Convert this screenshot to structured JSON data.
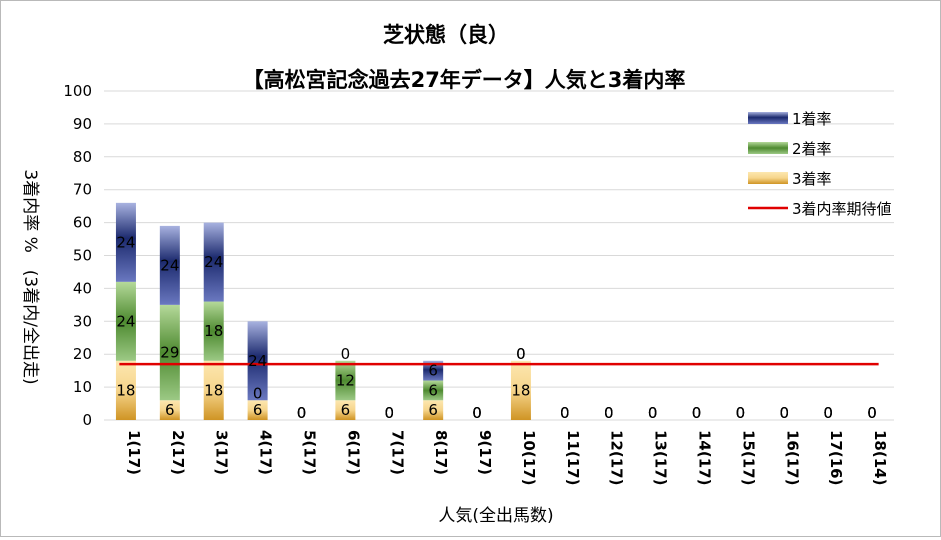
{
  "chart_data": {
    "type": "bar",
    "stacked": true,
    "title": "芝状態（良）",
    "subtitle": "【高松宮記念過去27年データ】人気と3着内率",
    "xlabel": "人気(全出馬数)",
    "ylabel": "3着内率 %　(3着内/全出走)",
    "ylim": [
      0,
      100
    ],
    "yticks": [
      "0",
      "10",
      "20",
      "30",
      "40",
      "50",
      "60",
      "70",
      "80",
      "90",
      "100"
    ],
    "grid": true,
    "legend_position": "top-right",
    "categories": [
      "1(17)",
      "2(17)",
      "3(17)",
      "4(17)",
      "5(17)",
      "6(17)",
      "7(17)",
      "8(17)",
      "9(17)",
      "10(17)",
      "11(17)",
      "12(17)",
      "13(17)",
      "14(17)",
      "15(17)",
      "16(17)",
      "17(16)",
      "18(14)"
    ],
    "series": [
      {
        "name": "3着率",
        "color": "#e8b040",
        "values": [
          18,
          6,
          18,
          6,
          0,
          6,
          0,
          6,
          0,
          18,
          0,
          0,
          0,
          0,
          0,
          0,
          0,
          0
        ]
      },
      {
        "name": "2着率",
        "color": "#5f9a3f",
        "values": [
          24,
          29,
          18,
          0,
          0,
          12,
          0,
          6,
          0,
          0,
          0,
          0,
          0,
          0,
          0,
          0,
          0,
          0
        ]
      },
      {
        "name": "1着率",
        "color": "#3d4f96",
        "values": [
          24,
          24,
          24,
          24,
          0,
          0,
          0,
          6,
          0,
          0,
          0,
          0,
          0,
          0,
          0,
          0,
          0,
          0
        ]
      }
    ],
    "reference_line": {
      "name": "3着内率期待値",
      "color": "#e00000",
      "value": 17
    }
  }
}
